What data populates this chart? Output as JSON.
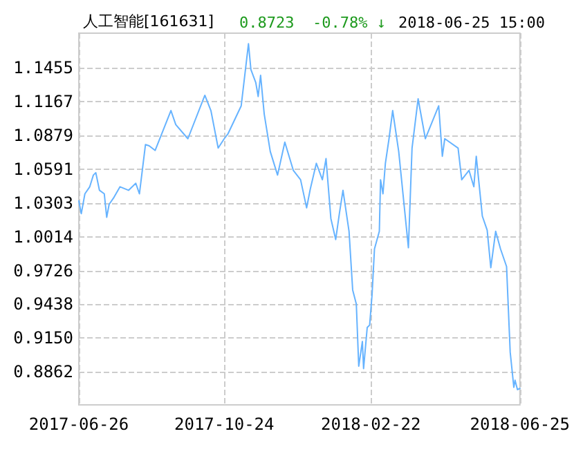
{
  "chart_data": {
    "type": "line",
    "title": "人工智能[161631]",
    "subtitle": "0.8723  -0.78% ↓",
    "annotations": [
      "2018-06-25 15:00"
    ],
    "x": [
      "2017-06-26",
      "2017-06-28",
      "2017-07-01",
      "2017-07-05",
      "2017-07-08",
      "2017-07-10",
      "2017-07-13",
      "2017-07-17",
      "2017-07-19",
      "2017-07-21",
      "2017-07-25",
      "2017-07-30",
      "2017-08-06",
      "2017-08-12",
      "2017-08-15",
      "2017-08-20",
      "2017-08-23",
      "2017-08-28",
      "2017-09-10",
      "2017-09-14",
      "2017-09-24",
      "2017-10-08",
      "2017-10-13",
      "2017-10-19",
      "2017-10-24",
      "2017-10-27",
      "2017-11-07",
      "2017-11-13",
      "2017-11-15",
      "2017-11-19",
      "2017-11-21",
      "2017-11-23",
      "2017-11-26",
      "2017-12-01",
      "2017-12-07",
      "2017-12-13",
      "2017-12-20",
      "2017-12-26",
      "2017-12-31",
      "2018-01-03",
      "2018-01-08",
      "2018-01-13",
      "2018-01-16",
      "2018-01-20",
      "2018-01-24",
      "2018-01-27",
      "2018-01-30",
      "2018-02-04",
      "2018-02-07",
      "2018-02-10",
      "2018-02-12",
      "2018-02-15",
      "2018-02-16",
      "2018-02-19",
      "2018-02-21",
      "2018-02-23",
      "2018-02-25",
      "2018-03-01",
      "2018-03-02",
      "2018-03-04",
      "2018-03-06",
      "2018-03-09",
      "2018-03-12",
      "2018-03-17",
      "2018-03-25",
      "2018-03-28",
      "2018-04-02",
      "2018-04-08",
      "2018-04-19",
      "2018-04-22",
      "2018-04-24",
      "2018-05-05",
      "2018-05-08",
      "2018-05-14",
      "2018-05-18",
      "2018-05-20",
      "2018-05-25",
      "2018-05-29",
      "2018-06-01",
      "2018-06-05",
      "2018-06-09",
      "2018-06-14",
      "2018-06-17",
      "2018-06-20",
      "2018-06-21",
      "2018-06-23",
      "2018-06-25"
    ],
    "series": [
      {
        "color": "#66b3ff",
        "values": [
          1.032,
          1.021,
          1.038,
          1.044,
          1.054,
          1.056,
          1.041,
          1.038,
          1.018,
          1.029,
          1.035,
          1.044,
          1.041,
          1.047,
          1.038,
          1.08,
          1.079,
          1.075,
          1.109,
          1.097,
          1.085,
          1.122,
          1.109,
          1.077,
          1.085,
          1.089,
          1.113,
          1.166,
          1.144,
          1.133,
          1.121,
          1.139,
          1.106,
          1.074,
          1.054,
          1.082,
          1.058,
          1.05,
          1.026,
          1.042,
          1.064,
          1.05,
          1.068,
          1.017,
          0.999,
          1.021,
          1.041,
          1.006,
          0.956,
          0.944,
          0.891,
          0.912,
          0.889,
          0.924,
          0.926,
          0.952,
          0.991,
          1.006,
          1.05,
          1.038,
          1.064,
          1.085,
          1.109,
          1.074,
          0.992,
          1.077,
          1.119,
          1.085,
          1.113,
          1.07,
          1.085,
          1.077,
          1.05,
          1.058,
          1.044,
          1.07,
          1.019,
          1.007,
          0.975,
          1.006,
          0.991,
          0.976,
          0.903,
          0.873,
          0.879,
          0.871,
          0.872
        ]
      }
    ],
    "xlim": [
      "2017-06-26",
      "2018-06-25"
    ],
    "xticks": [
      "2017-06-26",
      "2017-10-24",
      "2018-02-22",
      "2018-06-25"
    ],
    "ylim": [
      0.858,
      1.175
    ],
    "yticks": [
      0.8862,
      {
        "value": 0.915,
        "label": "0.9150"
      },
      0.9438,
      0.9726,
      1.0014,
      1.0303,
      1.0591,
      1.0879,
      1.1167,
      1.1455
    ],
    "grid": true,
    "marker": "none",
    "line_style": "solid"
  }
}
